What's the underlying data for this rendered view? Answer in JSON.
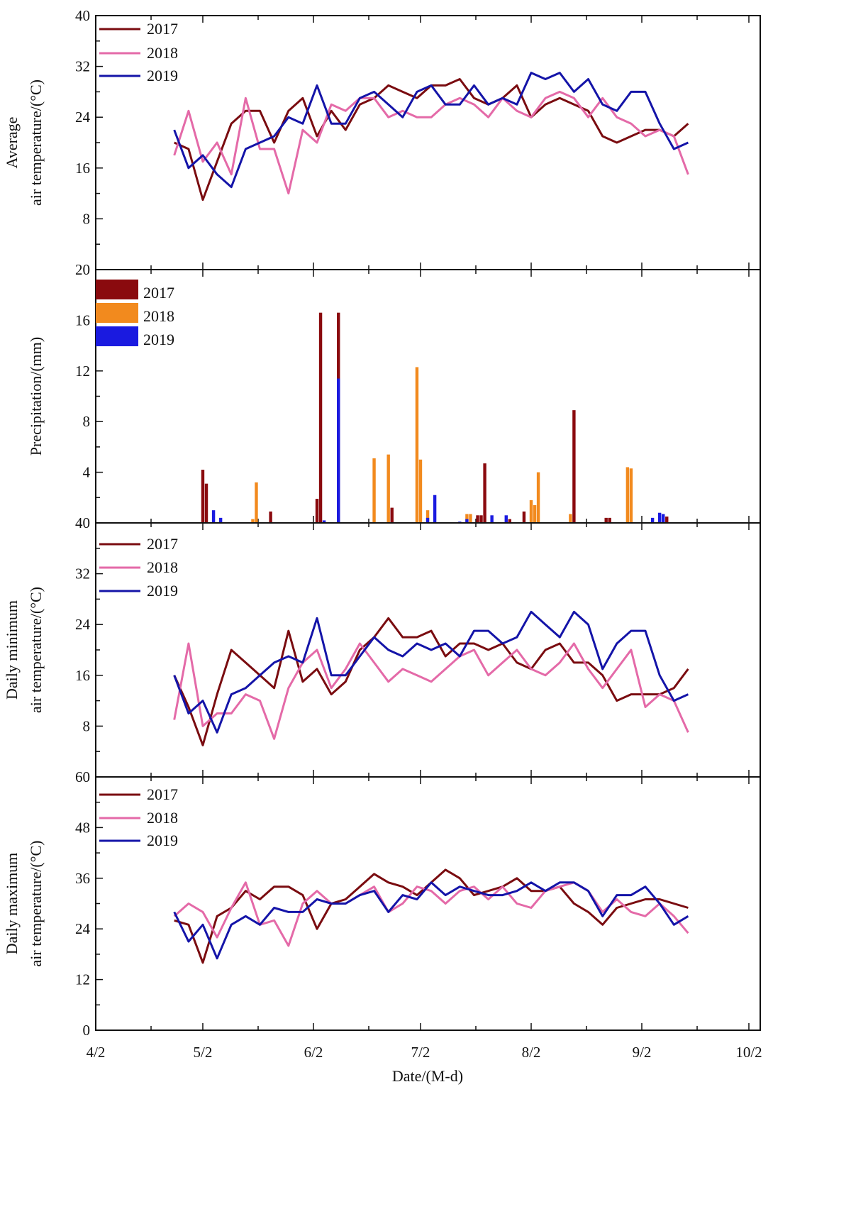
{
  "chart_data": [
    {
      "type": "line",
      "ylabel": [
        "Average",
        "air temperature/(°C)"
      ],
      "ylim": [
        0,
        40
      ],
      "yticks": [
        8,
        16,
        24,
        32,
        40
      ],
      "x": [
        "4/24",
        "4/28",
        "5/2",
        "5/6",
        "5/10",
        "5/14",
        "5/18",
        "5/22",
        "5/26",
        "5/30",
        "6/3",
        "6/7",
        "6/11",
        "6/15",
        "6/19",
        "6/23",
        "6/27",
        "7/1",
        "7/5",
        "7/9",
        "7/13",
        "7/17",
        "7/21",
        "7/25",
        "7/29",
        "8/2",
        "8/6",
        "8/10",
        "8/14",
        "8/18",
        "8/22",
        "8/26",
        "8/30",
        "9/3",
        "9/7",
        "9/11",
        "9/15"
      ],
      "legend": "top-left",
      "series": [
        {
          "name": "2017",
          "color": "#7a0c10",
          "values": [
            20,
            19,
            11,
            17,
            23,
            25,
            25,
            20,
            25,
            27,
            21,
            25,
            22,
            26,
            27,
            29,
            28,
            27,
            29,
            29,
            30,
            27,
            26,
            27,
            29,
            24,
            26,
            27,
            26,
            25,
            21,
            20,
            21,
            22,
            22,
            21,
            23
          ]
        },
        {
          "name": "2018",
          "color": "#e46aa8",
          "values": [
            18,
            25,
            17,
            20,
            15,
            27,
            19,
            19,
            12,
            22,
            20,
            26,
            25,
            27,
            27,
            24,
            25,
            24,
            24,
            26,
            27,
            26,
            24,
            27,
            25,
            24,
            27,
            28,
            27,
            24,
            27,
            24,
            23,
            21,
            22,
            21,
            15
          ]
        },
        {
          "name": "2019",
          "color": "#1414a8",
          "values": [
            22,
            16,
            18,
            15,
            13,
            19,
            20,
            21,
            24,
            23,
            29,
            23,
            23,
            27,
            28,
            26,
            24,
            28,
            29,
            26,
            26,
            29,
            26,
            27,
            26,
            31,
            30,
            31,
            28,
            30,
            26,
            25,
            28,
            28,
            23,
            19,
            20
          ]
        }
      ]
    },
    {
      "type": "bar",
      "ylabel": [
        "Precipitation/(mm)"
      ],
      "ylim": [
        0,
        20
      ],
      "yticks": [
        4,
        8,
        12,
        16,
        20
      ],
      "legend": "top-left",
      "series": [
        {
          "name": "2017",
          "color": "#8a0a0e",
          "points": [
            [
              "5/2",
              4.2
            ],
            [
              "5/3",
              3.1
            ],
            [
              "5/21",
              0.9
            ],
            [
              "6/3",
              1.9
            ],
            [
              "6/4",
              16.6
            ],
            [
              "6/9",
              16.6
            ],
            [
              "6/24",
              1.2
            ],
            [
              "7/18",
              0.6
            ],
            [
              "7/19",
              0.6
            ],
            [
              "7/20",
              4.7
            ],
            [
              "7/27",
              0.3
            ],
            [
              "7/31",
              0.9
            ],
            [
              "8/14",
              8.9
            ],
            [
              "8/23",
              0.4
            ],
            [
              "8/24",
              0.4
            ],
            [
              "9/9",
              0.5
            ]
          ]
        },
        {
          "name": "2018",
          "color": "#f28a1e",
          "points": [
            [
              "5/16",
              0.3
            ],
            [
              "5/17",
              3.2
            ],
            [
              "6/19",
              5.1
            ],
            [
              "6/23",
              5.4
            ],
            [
              "7/1",
              12.3
            ],
            [
              "7/2",
              5.0
            ],
            [
              "7/4",
              1.0
            ],
            [
              "7/15",
              0.7
            ],
            [
              "7/16",
              0.7
            ],
            [
              "8/2",
              1.8
            ],
            [
              "8/3",
              1.4
            ],
            [
              "8/4",
              4.0
            ],
            [
              "8/13",
              0.7
            ],
            [
              "8/29",
              4.4
            ],
            [
              "8/30",
              4.3
            ]
          ]
        },
        {
          "name": "2019",
          "color": "#1a1ae0",
          "points": [
            [
              "5/5",
              1.0
            ],
            [
              "5/7",
              0.4
            ],
            [
              "6/5",
              0.2
            ],
            [
              "6/9",
              11.4
            ],
            [
              "7/4",
              0.4
            ],
            [
              "7/6",
              2.2
            ],
            [
              "7/13",
              0.1
            ],
            [
              "7/15",
              0.3
            ],
            [
              "7/22",
              0.6
            ],
            [
              "7/26",
              0.6
            ],
            [
              "9/5",
              0.4
            ],
            [
              "9/7",
              0.8
            ],
            [
              "9/8",
              0.7
            ]
          ]
        }
      ]
    },
    {
      "type": "line",
      "ylabel": [
        "Daily minimum",
        "air temperature/(°C)"
      ],
      "ylim": [
        0,
        40
      ],
      "yticks": [
        8,
        16,
        24,
        32,
        40
      ],
      "legend": "top-left",
      "series": [
        {
          "name": "2017",
          "color": "#7a0c10",
          "values": [
            16,
            11,
            5,
            13,
            20,
            18,
            16,
            14,
            23,
            15,
            17,
            13,
            15,
            20,
            22,
            25,
            22,
            22,
            23,
            19,
            21,
            21,
            20,
            21,
            18,
            17,
            20,
            21,
            18,
            18,
            16,
            12,
            13,
            13,
            13,
            14,
            17
          ]
        },
        {
          "name": "2018",
          "color": "#e46aa8",
          "values": [
            9,
            21,
            8,
            10,
            10,
            13,
            12,
            6,
            14,
            18,
            20,
            14,
            17,
            21,
            18,
            15,
            17,
            16,
            15,
            17,
            19,
            20,
            16,
            18,
            20,
            17,
            16,
            18,
            21,
            17,
            14,
            17,
            20,
            11,
            13,
            12,
            7
          ]
        },
        {
          "name": "2019",
          "color": "#1414a8",
          "values": [
            16,
            10,
            12,
            7,
            13,
            14,
            16,
            18,
            19,
            18,
            25,
            16,
            16,
            19,
            22,
            20,
            19,
            21,
            20,
            21,
            19,
            23,
            23,
            21,
            22,
            26,
            24,
            22,
            26,
            24,
            17,
            21,
            23,
            23,
            16,
            12,
            13
          ]
        }
      ]
    },
    {
      "type": "line",
      "ylabel": [
        "Daily maximum",
        "air temperature/(°C)"
      ],
      "ylim": [
        0,
        60
      ],
      "yticks": [
        0,
        12,
        24,
        36,
        48,
        60
      ],
      "legend": "top-left",
      "series": [
        {
          "name": "2017",
          "color": "#7a0c10",
          "values": [
            26,
            25,
            16,
            27,
            29,
            33,
            31,
            34,
            34,
            32,
            24,
            30,
            31,
            34,
            37,
            35,
            34,
            32,
            35,
            38,
            36,
            32,
            33,
            34,
            36,
            33,
            33,
            34,
            30,
            28,
            25,
            29,
            30,
            31,
            31,
            30,
            29
          ]
        },
        {
          "name": "2018",
          "color": "#e46aa8",
          "values": [
            27,
            30,
            28,
            22,
            29,
            35,
            25,
            26,
            20,
            30,
            33,
            30,
            30,
            32,
            34,
            28,
            30,
            34,
            33,
            30,
            33,
            34,
            31,
            34,
            30,
            29,
            33,
            34,
            35,
            33,
            28,
            31,
            28,
            27,
            30,
            27,
            23
          ]
        },
        {
          "name": "2019",
          "color": "#1414a8",
          "values": [
            28,
            21,
            25,
            17,
            25,
            27,
            25,
            29,
            28,
            28,
            31,
            30,
            30,
            32,
            33,
            28,
            32,
            31,
            35,
            32,
            34,
            33,
            32,
            32,
            33,
            35,
            33,
            35,
            35,
            33,
            27,
            32,
            32,
            34,
            30,
            25,
            27
          ]
        }
      ]
    }
  ],
  "x_axis": {
    "label": "Date/(M-d)",
    "ticks": [
      "4/2",
      "5/2",
      "6/2",
      "7/2",
      "8/2",
      "9/2",
      "10/2"
    ]
  }
}
